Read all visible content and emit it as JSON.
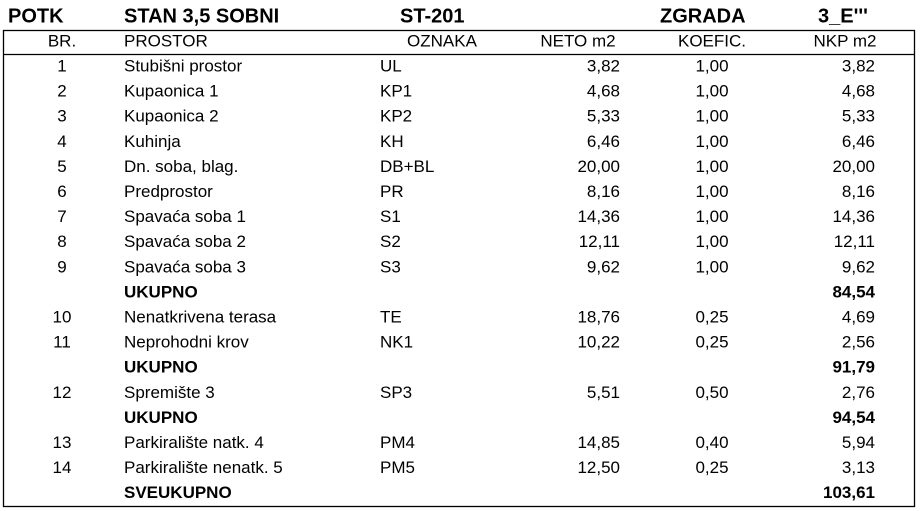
{
  "header": {
    "title_row": [
      "POTK",
      "STAN 3,5 SOBNI",
      "ST-201",
      "ZGRADA",
      "3_E'''"
    ],
    "columns": [
      "BR.",
      "PROSTOR",
      "OZNAKA",
      "NETO m2",
      "KOEFIC.",
      "NKP m2"
    ]
  },
  "table": {
    "rows": [
      {
        "no": "1",
        "name": "Stubišni prostor",
        "code": "UL",
        "neto": "3,82",
        "koef": "1,00",
        "nkp": "3,82"
      },
      {
        "no": "2",
        "name": "Kupaonica 1",
        "code": "KP1",
        "neto": "4,68",
        "koef": "1,00",
        "nkp": "4,68"
      },
      {
        "no": "3",
        "name": "Kupaonica 2",
        "code": "KP2",
        "neto": "5,33",
        "koef": "1,00",
        "nkp": "5,33"
      },
      {
        "no": "4",
        "name": "Kuhinja",
        "code": "KH",
        "neto": "6,46",
        "koef": "1,00",
        "nkp": "6,46"
      },
      {
        "no": "5",
        "name": "Dn. soba, blag.",
        "code": "DB+BL",
        "neto": "20,00",
        "koef": "1,00",
        "nkp": "20,00"
      },
      {
        "no": "6",
        "name": "Predprostor",
        "code": "PR",
        "neto": "8,16",
        "koef": "1,00",
        "nkp": "8,16"
      },
      {
        "no": "7",
        "name": "Spavaća soba 1",
        "code": "S1",
        "neto": "14,36",
        "koef": "1,00",
        "nkp": "14,36"
      },
      {
        "no": "8",
        "name": "Spavaća soba 2",
        "code": "S2",
        "neto": "12,11",
        "koef": "1,00",
        "nkp": "12,11"
      },
      {
        "no": "9",
        "name": "Spavaća soba 3",
        "code": "S3",
        "neto": "9,62",
        "koef": "1,00",
        "nkp": "9,62"
      },
      {
        "label": "UKUPNO",
        "nkp": "84,54"
      },
      {
        "no": "10",
        "name": "Nenatkrivena terasa",
        "code": "TE",
        "neto": "18,76",
        "koef": "0,25",
        "nkp": "4,69"
      },
      {
        "no": "11",
        "name": "Neprohodni krov",
        "code": "NK1",
        "neto": "10,22",
        "koef": "0,25",
        "nkp": "2,56"
      },
      {
        "label": "UKUPNO",
        "nkp": "91,79"
      },
      {
        "no": "12",
        "name": "Spremište 3",
        "code": "SP3",
        "neto": "5,51",
        "koef": "0,50",
        "nkp": "2,76"
      },
      {
        "label": "UKUPNO",
        "nkp": "94,54"
      },
      {
        "no": "13",
        "name": "Parkiralište natk. 4",
        "code": "PM4",
        "neto": "14,85",
        "koef": "0,40",
        "nkp": "5,94"
      },
      {
        "no": "14",
        "name": "Parkiralište nenatk. 5",
        "code": "PM5",
        "neto": "12,50",
        "koef": "0,25",
        "nkp": "3,13"
      },
      {
        "label": "SVEUKUPNO",
        "nkp": "103,61"
      }
    ]
  }
}
